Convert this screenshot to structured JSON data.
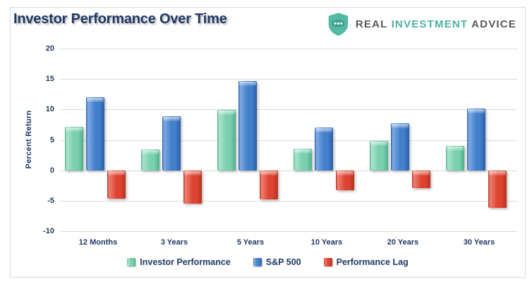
{
  "header": {
    "title": "Investor Performance Over Time",
    "logo": {
      "real": "REAL",
      "investment": "INVESTMENT",
      "advice": "ADVICE"
    }
  },
  "colors": {
    "title_navy": "#1F3864",
    "axis_text_navy": "#1F3864",
    "gridline_gray": "#D9D9D9",
    "frame_border_gray": "#D9D9D9",
    "logo_gray": "#58595B",
    "logo_teal": "#4BB19C",
    "shield_teal": "#52B9A4",
    "shield_badge_teal": "#3B9E8A",
    "series_green": "#79CFAE",
    "series_blue": "#4280CC",
    "series_red": "#DE4331"
  },
  "chart_data": {
    "type": "bar",
    "title": "Investor Performance Over Time",
    "xlabel": "",
    "ylabel": "Percent Return",
    "ylim": [
      -10,
      20
    ],
    "yticks": [
      20,
      15,
      10,
      5,
      0,
      -5,
      -10
    ],
    "grid": true,
    "legend_position": "bottom",
    "categories": [
      "12 Months",
      "3 Years",
      "5 Years",
      "10 Years",
      "20 Years",
      "30 Years"
    ],
    "series": [
      {
        "key": "investor",
        "name": "Investor Performance",
        "color": "#79CFAE",
        "values": [
          7.2,
          3.4,
          9.9,
          3.6,
          4.8,
          4.0
        ]
      },
      {
        "key": "sp500",
        "name": "S&P 500",
        "color": "#4280CC",
        "values": [
          12.0,
          8.9,
          14.7,
          7.0,
          7.7,
          10.2
        ]
      },
      {
        "key": "lag",
        "name": "Performance Lag",
        "color": "#DE4331",
        "values": [
          -4.7,
          -5.5,
          -4.8,
          -3.3,
          -2.9,
          -6.2
        ]
      }
    ]
  }
}
